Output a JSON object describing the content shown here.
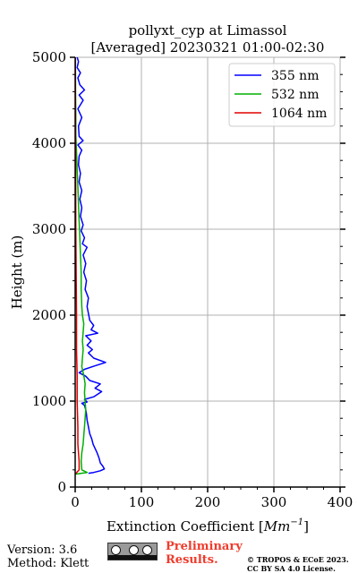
{
  "chart_data": {
    "type": "line",
    "title_line1": "pollyxt_cyp at Limassol",
    "title_line2": "[Averaged] 20230321 01:00-02:30",
    "xlabel": "Extinction Coefficient [",
    "xlabel_unit": "Mm",
    "xlabel_exp": "−1",
    "xlabel_close": "]",
    "ylabel": "Height (m)",
    "xlim": [
      0,
      400
    ],
    "ylim": [
      0,
      5000
    ],
    "x_ticks": [
      0,
      100,
      200,
      300,
      400
    ],
    "y_ticks": [
      0,
      1000,
      2000,
      3000,
      4000,
      5000
    ],
    "grid": true,
    "legend_position": "top-right",
    "series": [
      {
        "name": "355 nm",
        "color": "#0000ff",
        "points": [
          [
            20,
            160
          ],
          [
            28,
            170
          ],
          [
            38,
            190
          ],
          [
            44,
            210
          ],
          [
            42,
            240
          ],
          [
            38,
            280
          ],
          [
            36,
            340
          ],
          [
            33,
            400
          ],
          [
            30,
            450
          ],
          [
            27,
            500
          ],
          [
            25,
            560
          ],
          [
            22,
            620
          ],
          [
            20,
            700
          ],
          [
            18,
            780
          ],
          [
            17,
            850
          ],
          [
            16,
            900
          ],
          [
            14,
            950
          ],
          [
            10,
            975
          ],
          [
            18,
            990
          ],
          [
            14,
            1020
          ],
          [
            28,
            1050
          ],
          [
            40,
            1110
          ],
          [
            30,
            1150
          ],
          [
            38,
            1200
          ],
          [
            22,
            1240
          ],
          [
            16,
            1290
          ],
          [
            6,
            1330
          ],
          [
            14,
            1370
          ],
          [
            30,
            1410
          ],
          [
            46,
            1450
          ],
          [
            28,
            1500
          ],
          [
            20,
            1560
          ],
          [
            26,
            1600
          ],
          [
            18,
            1650
          ],
          [
            24,
            1700
          ],
          [
            16,
            1760
          ],
          [
            34,
            1790
          ],
          [
            24,
            1830
          ],
          [
            28,
            1880
          ],
          [
            22,
            1940
          ],
          [
            20,
            2020
          ],
          [
            18,
            2100
          ],
          [
            20,
            2200
          ],
          [
            15,
            2300
          ],
          [
            17,
            2400
          ],
          [
            13,
            2500
          ],
          [
            16,
            2600
          ],
          [
            12,
            2700
          ],
          [
            18,
            2790
          ],
          [
            11,
            2830
          ],
          [
            14,
            2900
          ],
          [
            9,
            2980
          ],
          [
            12,
            3050
          ],
          [
            8,
            3150
          ],
          [
            10,
            3250
          ],
          [
            7,
            3350
          ],
          [
            10,
            3450
          ],
          [
            6,
            3550
          ],
          [
            8,
            3650
          ],
          [
            5,
            3750
          ],
          [
            6,
            3850
          ],
          [
            10,
            3920
          ],
          [
            4,
            3980
          ],
          [
            12,
            4030
          ],
          [
            6,
            4080
          ],
          [
            5,
            4200
          ],
          [
            10,
            4300
          ],
          [
            4,
            4400
          ],
          [
            12,
            4500
          ],
          [
            6,
            4560
          ],
          [
            14,
            4620
          ],
          [
            7,
            4680
          ],
          [
            4,
            4760
          ],
          [
            8,
            4820
          ],
          [
            3,
            4880
          ],
          [
            5,
            4950
          ],
          [
            3,
            5000
          ]
        ]
      },
      {
        "name": "532 nm",
        "color": "#00b000",
        "points": [
          [
            0,
            150
          ],
          [
            18,
            170
          ],
          [
            10,
            200
          ],
          [
            9,
            300
          ],
          [
            10,
            400
          ],
          [
            12,
            500
          ],
          [
            13,
            600
          ],
          [
            14,
            700
          ],
          [
            15,
            800
          ],
          [
            16,
            900
          ],
          [
            15,
            1000
          ],
          [
            14,
            1100
          ],
          [
            15,
            1200
          ],
          [
            13,
            1300
          ],
          [
            10,
            1400
          ],
          [
            11,
            1500
          ],
          [
            12,
            1600
          ],
          [
            11,
            1700
          ],
          [
            12,
            1800
          ],
          [
            13,
            1900
          ],
          [
            11,
            2000
          ],
          [
            10,
            2100
          ],
          [
            9,
            2300
          ],
          [
            9,
            2500
          ],
          [
            8,
            2700
          ],
          [
            7,
            2900
          ],
          [
            6,
            3100
          ],
          [
            5,
            3300
          ],
          [
            4,
            3500
          ],
          [
            3,
            3700
          ],
          [
            2,
            3900
          ],
          [
            1,
            4100
          ],
          [
            1,
            4300
          ],
          [
            0.6,
            4600
          ],
          [
            0.4,
            5000
          ]
        ]
      },
      {
        "name": "1064 nm",
        "color": "#e00000",
        "points": [
          [
            0,
            150
          ],
          [
            6,
            200
          ],
          [
            6,
            300
          ],
          [
            5,
            400
          ],
          [
            4,
            500
          ],
          [
            4,
            700
          ],
          [
            3,
            1000
          ],
          [
            3,
            1300
          ],
          [
            2,
            1600
          ],
          [
            2,
            2000
          ],
          [
            1.5,
            2500
          ],
          [
            1,
            3000
          ],
          [
            0.8,
            3500
          ],
          [
            0.5,
            4000
          ],
          [
            0.4,
            4500
          ],
          [
            0.3,
            5000
          ]
        ]
      }
    ]
  },
  "footer": {
    "version": "Version: 3.6",
    "method": "Method: Klett",
    "preliminary_line1": "Preliminary",
    "preliminary_line2": "Results.",
    "copyright_line1": "© TROPOS & ECoE 2023.",
    "copyright_line2": "CC BY SA 4.0 License."
  },
  "colors": {
    "preliminary": "#ef3b2c",
    "grid": "#b0b0b0"
  }
}
